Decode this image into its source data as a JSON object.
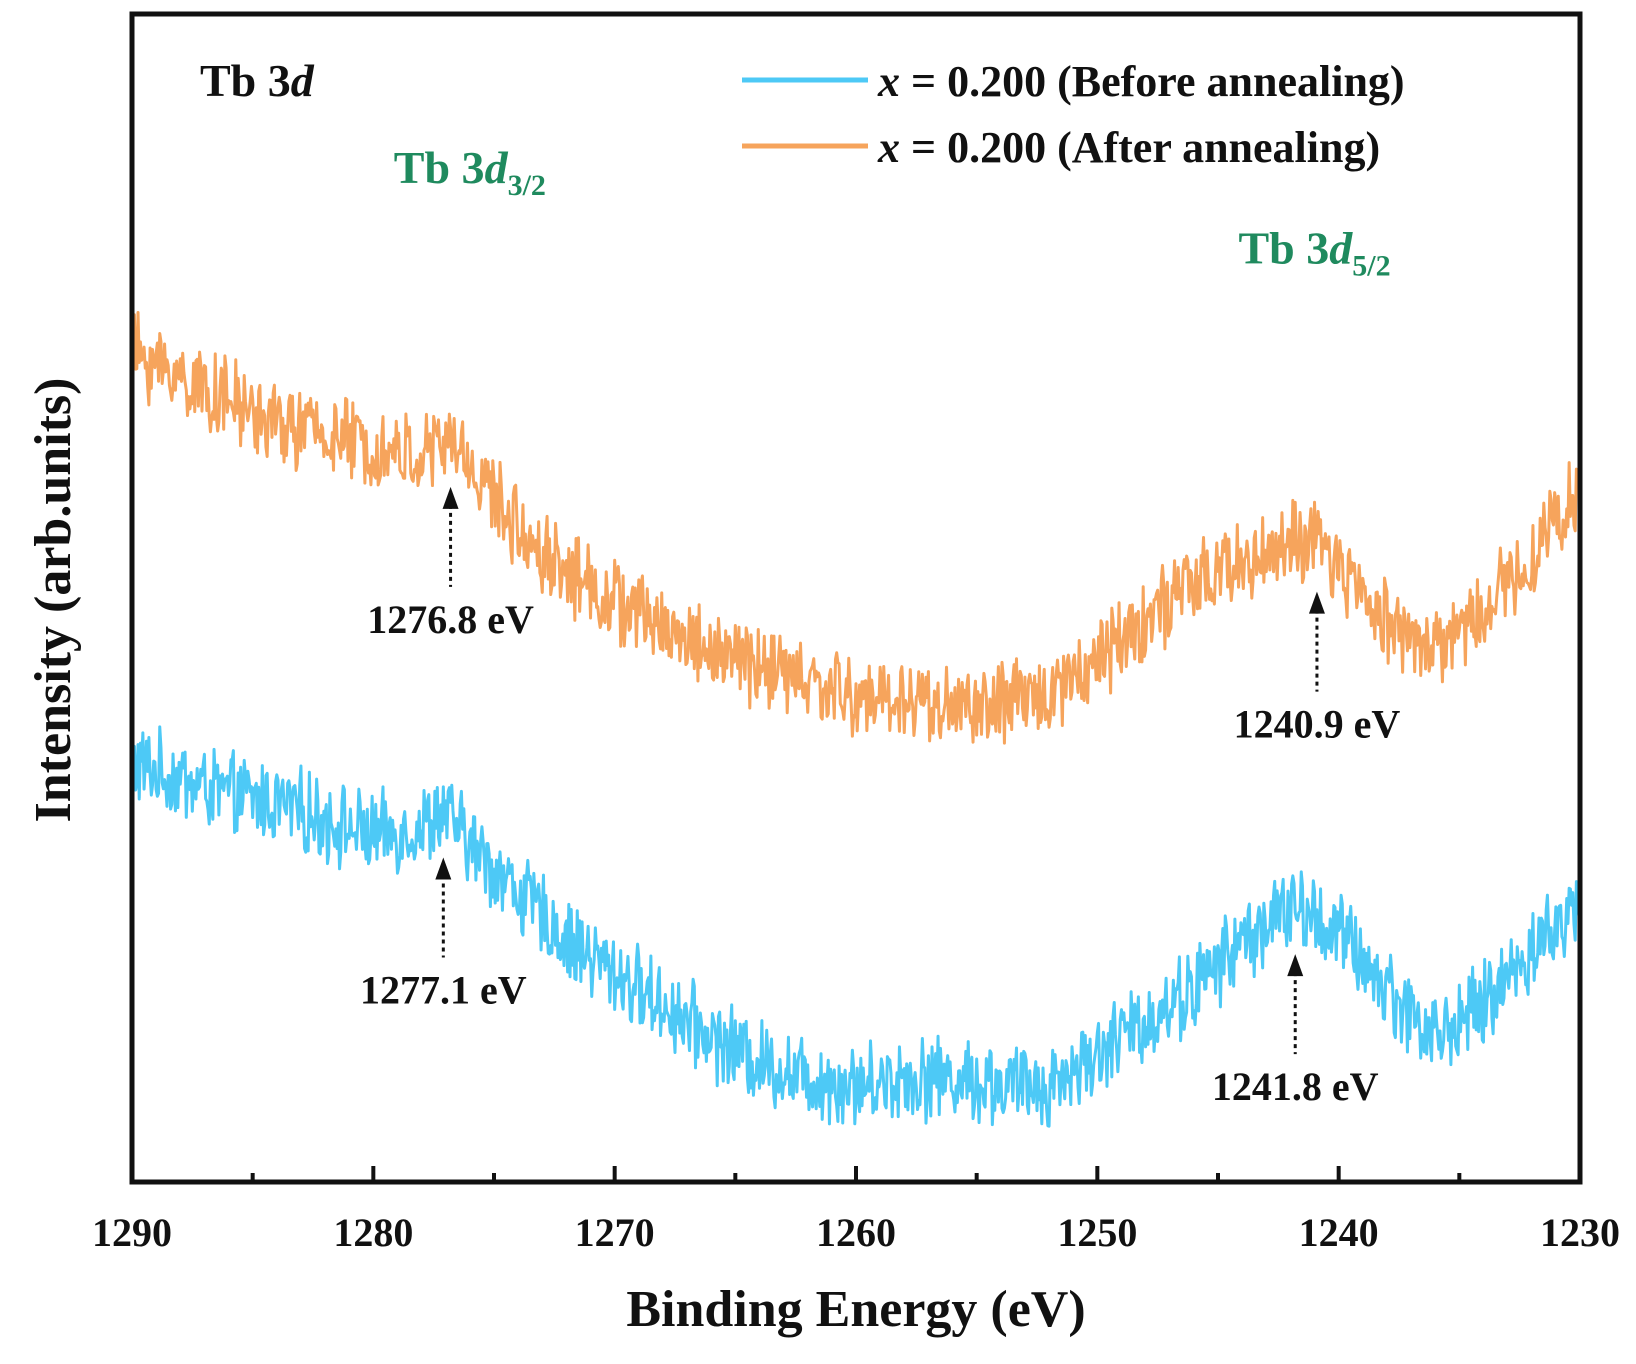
{
  "chart_data": {
    "type": "line",
    "title": "",
    "panel_label": {
      "main": "Tb 3",
      "italic": "d"
    },
    "xlabel": "Binding Energy (eV)",
    "ylabel": "Intensity (arb.units)",
    "xlim": [
      1290,
      1230
    ],
    "x_reversed": true,
    "y_ticks_shown": false,
    "grid": false,
    "xticks": [
      1290,
      1280,
      1270,
      1260,
      1250,
      1240,
      1230
    ],
    "xtick_labels": [
      "1290",
      "1280",
      "1270",
      "1260",
      "1250",
      "1240",
      "1230"
    ],
    "legend_position": "top-right",
    "series": [
      {
        "name": "x = 0.200 (Before annealing)",
        "legend_var": "x",
        "legend_rest": " = 0.200 (Before annealing)",
        "color": "#4dc9f6",
        "offset": 0,
        "noise_amplitude": 0.045,
        "x": [
          1290,
          1288,
          1286,
          1284,
          1282,
          1280,
          1278,
          1277.1,
          1276,
          1274,
          1272,
          1270,
          1268,
          1266,
          1264,
          1262,
          1260,
          1258,
          1256,
          1254,
          1252,
          1250,
          1248,
          1246,
          1244,
          1242,
          1241.8,
          1240,
          1238,
          1236,
          1234,
          1232,
          1230
        ],
        "y": [
          0.42,
          0.4,
          0.38,
          0.37,
          0.35,
          0.33,
          0.34,
          0.36,
          0.32,
          0.26,
          0.2,
          0.16,
          0.12,
          0.08,
          0.05,
          0.03,
          0.02,
          0.03,
          0.03,
          0.02,
          0.02,
          0.06,
          0.1,
          0.14,
          0.2,
          0.24,
          0.24,
          0.21,
          0.14,
          0.08,
          0.12,
          0.19,
          0.24
        ]
      },
      {
        "name": "x = 0.200 (After annealing)",
        "legend_var": "x",
        "legend_rest": " = 0.200 (After annealing)",
        "color": "#f6a45c",
        "offset": 0.46,
        "noise_amplitude": 0.045,
        "x": [
          1290,
          1288,
          1286,
          1284,
          1282,
          1280,
          1278,
          1276.8,
          1276,
          1274,
          1272,
          1270,
          1268,
          1266,
          1264,
          1262,
          1260,
          1258,
          1256,
          1254,
          1252,
          1250,
          1248,
          1246,
          1244,
          1242,
          1240.9,
          1240,
          1238,
          1236,
          1234,
          1232,
          1230
        ],
        "y": [
          0.47,
          0.44,
          0.41,
          0.38,
          0.37,
          0.35,
          0.34,
          0.36,
          0.33,
          0.25,
          0.2,
          0.16,
          0.13,
          0.1,
          0.08,
          0.06,
          0.04,
          0.04,
          0.03,
          0.03,
          0.05,
          0.09,
          0.14,
          0.18,
          0.21,
          0.23,
          0.23,
          0.2,
          0.14,
          0.1,
          0.15,
          0.22,
          0.3
        ]
      }
    ],
    "ylim": [
      -0.1,
      1.35
    ],
    "peak_labels": [
      {
        "main": "Tb 3",
        "italic": "d",
        "sub": "3/2",
        "color": "#1f8a5e",
        "x": 1276.0,
        "y": 1.14
      },
      {
        "main": "Tb 3",
        "italic": "d",
        "sub": "5/2",
        "color": "#1f8a5e",
        "x": 1241.0,
        "y": 1.04
      }
    ],
    "annotations": [
      {
        "text": "1276.8 eV",
        "x": 1276.8,
        "series": 1
      },
      {
        "text": "1240.9 eV",
        "x": 1240.9,
        "series": 1
      },
      {
        "text": "1277.1 eV",
        "x": 1277.1,
        "series": 0
      },
      {
        "text": "1241.8 eV",
        "x": 1241.8,
        "series": 0
      }
    ]
  }
}
